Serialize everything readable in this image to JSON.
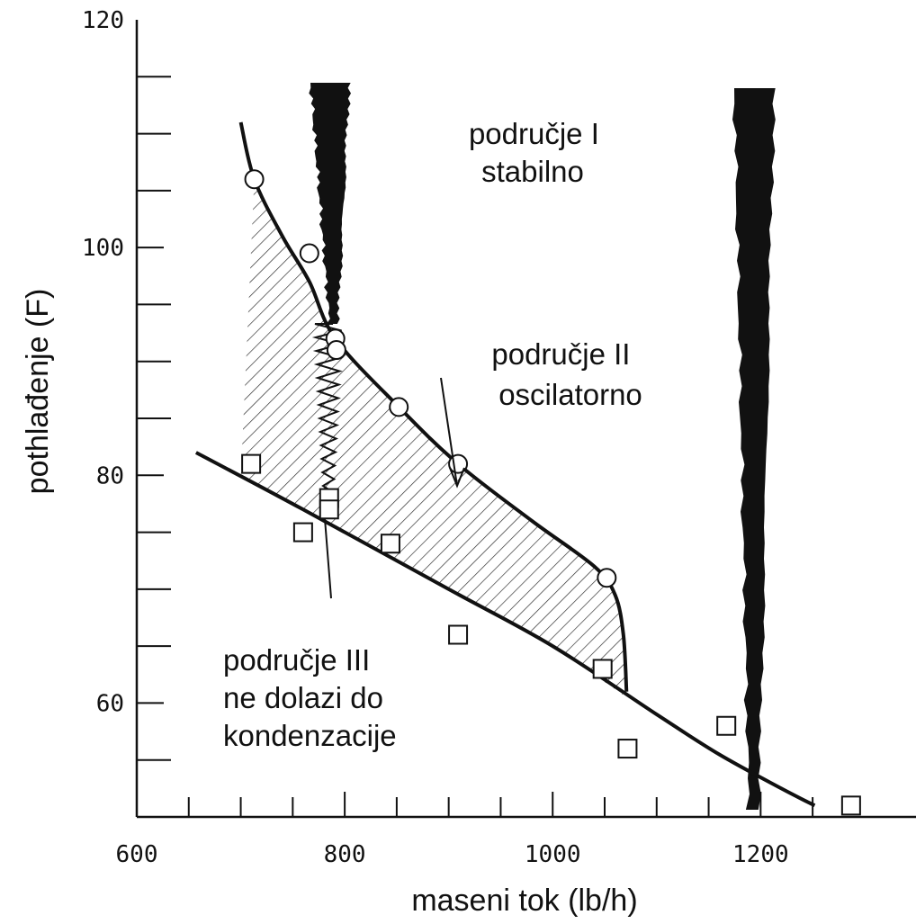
{
  "chart_data": {
    "type": "scatter",
    "title": "",
    "xlabel": "maseni tok (lb/h)",
    "ylabel": "pothlađenje (F)",
    "xlim": [
      600,
      1290
    ],
    "ylim": [
      50,
      120
    ],
    "xticks": [
      {
        "value": 600,
        "label": "600"
      },
      {
        "value": 800,
        "label": "800"
      },
      {
        "value": 1000,
        "label": "1000"
      },
      {
        "value": 1200,
        "label": "1200"
      }
    ],
    "yticks": [
      {
        "value": 60,
        "label": "60"
      },
      {
        "value": 80,
        "label": "80"
      },
      {
        "value": 100,
        "label": "100"
      },
      {
        "value": 120,
        "label": "120"
      }
    ],
    "x_minor_step": 50,
    "y_minor_step": 5,
    "grid": false,
    "series": [
      {
        "marker": "circle",
        "points": [
          {
            "x": 713,
            "y": 106
          },
          {
            "x": 766,
            "y": 99.5
          },
          {
            "x": 791,
            "y": 92
          },
          {
            "x": 792,
            "y": 91
          },
          {
            "x": 852,
            "y": 86
          },
          {
            "x": 909,
            "y": 81
          },
          {
            "x": 1052,
            "y": 71
          }
        ]
      },
      {
        "marker": "square",
        "points": [
          {
            "x": 710,
            "y": 81
          },
          {
            "x": 760,
            "y": 75
          },
          {
            "x": 785,
            "y": 78
          },
          {
            "x": 785,
            "y": 77
          },
          {
            "x": 844,
            "y": 74
          },
          {
            "x": 909,
            "y": 66
          },
          {
            "x": 1048,
            "y": 63
          },
          {
            "x": 1072,
            "y": 56
          },
          {
            "x": 1167,
            "y": 58
          },
          {
            "x": 1287,
            "y": 51
          }
        ]
      }
    ],
    "upper_curve": [
      {
        "x": 700,
        "y": 111
      },
      {
        "x": 713,
        "y": 106
      },
      {
        "x": 740,
        "y": 101
      },
      {
        "x": 766,
        "y": 97
      },
      {
        "x": 791,
        "y": 92
      },
      {
        "x": 852,
        "y": 86
      },
      {
        "x": 909,
        "y": 81
      },
      {
        "x": 980,
        "y": 76
      },
      {
        "x": 1040,
        "y": 72
      },
      {
        "x": 1060,
        "y": 69.5
      },
      {
        "x": 1068,
        "y": 66
      },
      {
        "x": 1071,
        "y": 61
      }
    ],
    "lower_curve": [
      {
        "x": 657,
        "y": 82
      },
      {
        "x": 760,
        "y": 77
      },
      {
        "x": 900,
        "y": 70
      },
      {
        "x": 1000,
        "y": 65
      },
      {
        "x": 1100,
        "y": 59
      },
      {
        "x": 1160,
        "y": 55.5
      },
      {
        "x": 1220,
        "y": 52.5
      },
      {
        "x": 1252,
        "y": 51
      }
    ],
    "annotations": [
      {
        "lines": [
          "područje I",
          "stabilno"
        ]
      },
      {
        "lines": [
          "područje II",
          "oscilatorno"
        ]
      },
      {
        "lines": [
          "područje III",
          "ne dolazi do",
          "kondenzacije"
        ]
      }
    ]
  }
}
